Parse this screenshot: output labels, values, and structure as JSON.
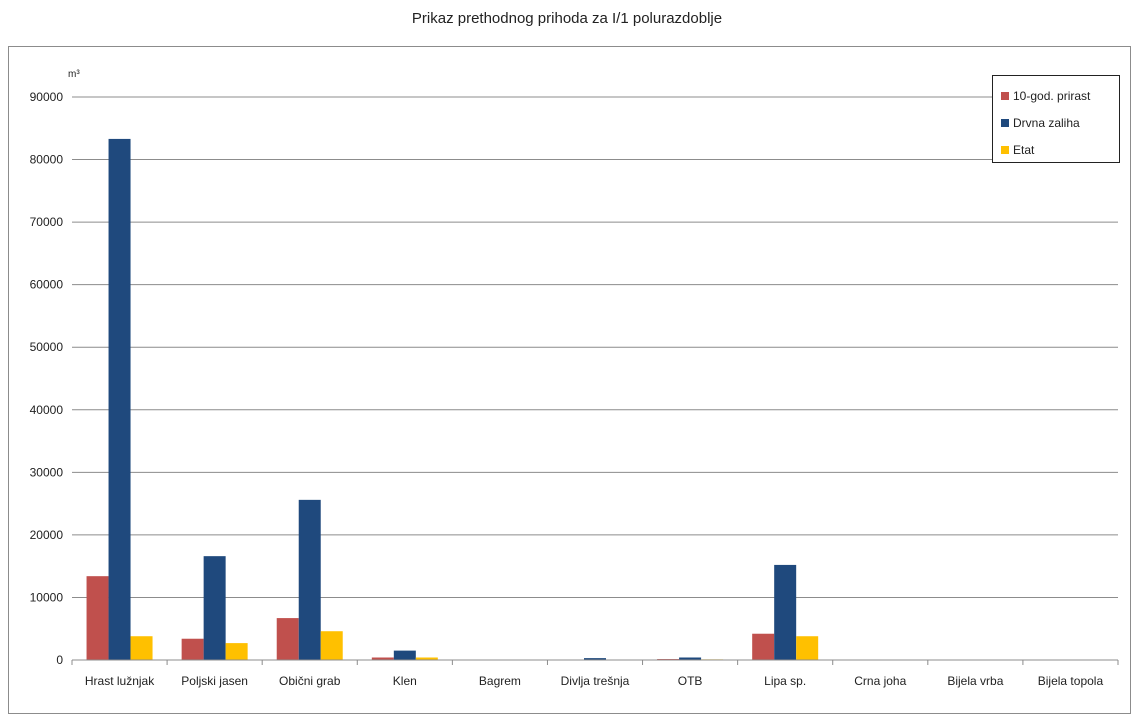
{
  "chart_data": {
    "type": "bar",
    "title": "Prikaz prethodnog prihoda za I/1 polurazdoblje",
    "ylabel": "m³",
    "xlabel": "",
    "ylim": [
      0,
      90000
    ],
    "yticks": [
      "0",
      "10000",
      "20000",
      "30000",
      "40000",
      "50000",
      "60000",
      "70000",
      "80000",
      "90000"
    ],
    "grid": true,
    "legend_position": "top-right",
    "categories": [
      "Hrast lužnjak",
      "Poljski jasen",
      "Obični grab",
      "Klen",
      "Bagrem",
      "Divlja trešnja",
      "OTB",
      "Lipa sp.",
      "Crna joha",
      "Bijela vrba",
      "Bijela topola"
    ],
    "series": [
      {
        "name": "10-god. prirast",
        "color": "#c0504d",
        "values": [
          13400,
          3400,
          6700,
          400,
          0,
          50,
          150,
          4200,
          0,
          0,
          0
        ]
      },
      {
        "name": "Drvna zaliha",
        "color": "#1f497d",
        "values": [
          83300,
          16600,
          25600,
          1500,
          0,
          300,
          400,
          15200,
          0,
          0,
          0
        ]
      },
      {
        "name": "Etat",
        "color": "#ffc000",
        "values": [
          3800,
          2700,
          4600,
          400,
          0,
          0,
          100,
          3800,
          0,
          0,
          0
        ]
      }
    ]
  }
}
